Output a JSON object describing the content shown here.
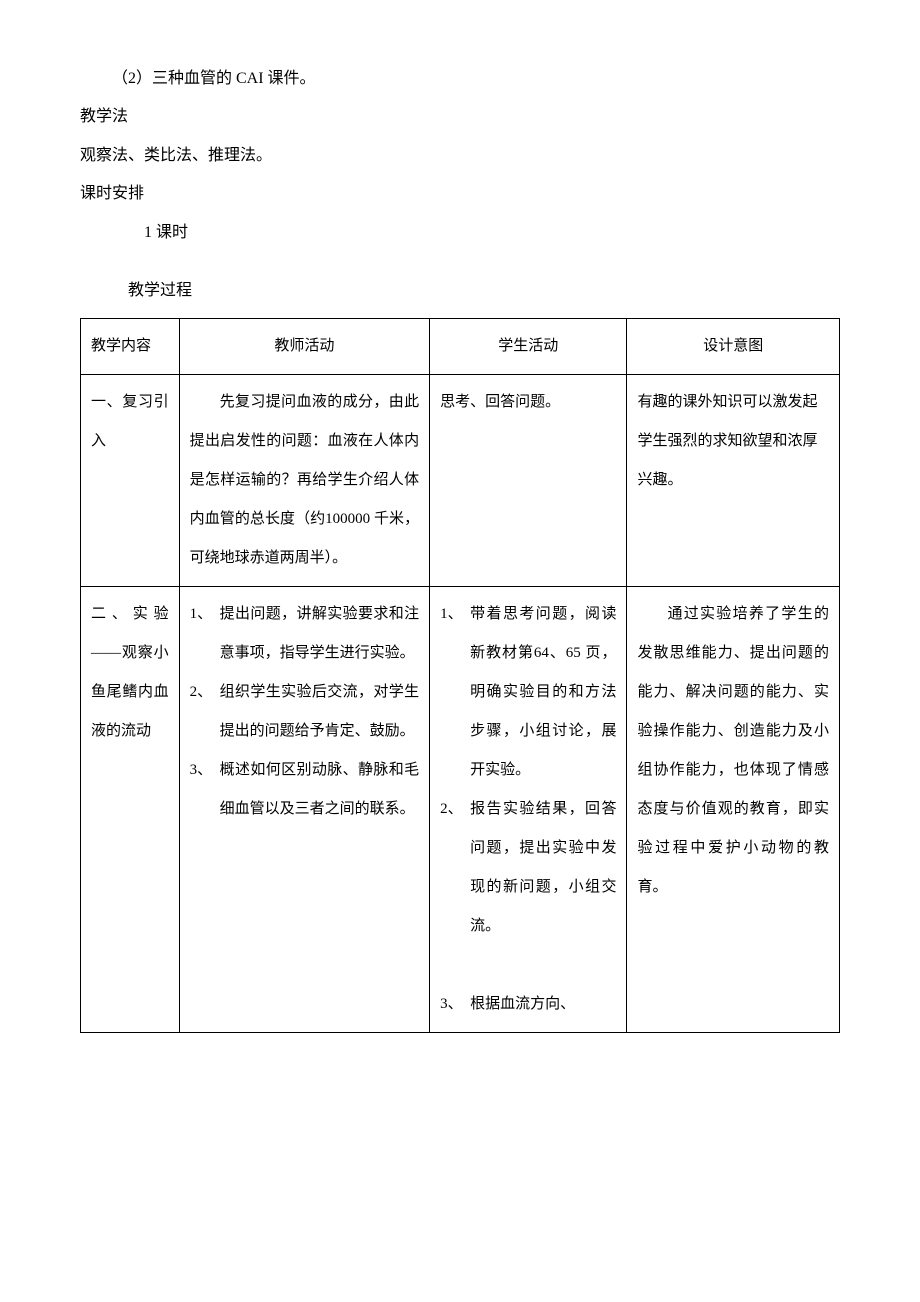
{
  "intro": {
    "line1": "（2）三种血管的 CAI 课件。",
    "line2": "教学法",
    "line3": "观察法、类比法、推理法。",
    "line4": "课时安排",
    "line5": "1 课时",
    "line6": "教学过程"
  },
  "table": {
    "headers": {
      "col1": "教学内容",
      "col2": "教师活动",
      "col3": "学生活动",
      "col4": "设计意图"
    },
    "row1": {
      "col1": "一、复习引入",
      "col2": "先复习提问血液的成分，由此提出启发性的问题：血液在人体内是怎样运输的？再给学生介绍人体内血管的总长度（约100000 千米，可绕地球赤道两周半）。",
      "col3": "思考、回答问题。",
      "col4": "有趣的课外知识可以激发起学生强烈的求知欲望和浓厚兴趣。"
    },
    "row2": {
      "col1": "二、实验——观察小鱼尾鳍内血液的流动",
      "col2_items": [
        {
          "num": "1、",
          "text": "提出问题，讲解实验要求和注意事项，指导学生进行实验。"
        },
        {
          "num": "2、",
          "text": "组织学生实验后交流，对学生提出的问题给予肯定、鼓励。"
        },
        {
          "num": "3、",
          "text": "概述如何区别动脉、静脉和毛细血管以及三者之间的联系。"
        }
      ],
      "col3_items": [
        {
          "num": "1、",
          "text": "带着思考问题，阅读新教材第64、65 页，明确实验目的和方法步骤，小组讨论，展开实验。"
        },
        {
          "num": "2、",
          "text": "报告实验结果，回答问题，提出实验中发现的新问题，小组交流。"
        },
        {
          "num": "3、",
          "text": "根据血流方向、"
        }
      ],
      "col4": "通过实验培养了学生的发散思维能力、提出问题的能力、解决问题的能力、实验操作能力、创造能力及小组协作能力，也体现了情感态度与价值观的教育，即实验过程中爱护小动物的教育。"
    }
  }
}
